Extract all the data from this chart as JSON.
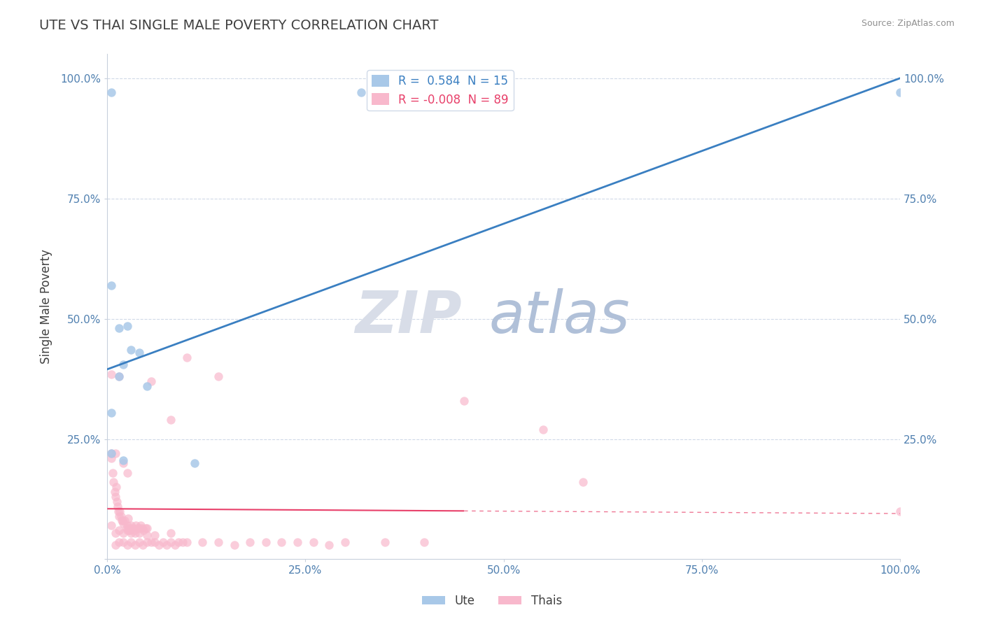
{
  "title": "UTE VS THAI SINGLE MALE POVERTY CORRELATION CHART",
  "source_text": "Source: ZipAtlas.com",
  "ylabel": "Single Male Poverty",
  "legend_entries": [
    {
      "label": "R =  0.584  N = 15",
      "color": "#a8c8e8"
    },
    {
      "label": "R = -0.008  N = 89",
      "color": "#f8b8cc"
    }
  ],
  "ute_scatter": [
    [
      0.5,
      97.0
    ],
    [
      32.0,
      97.0
    ],
    [
      0.5,
      57.0
    ],
    [
      1.5,
      48.0
    ],
    [
      2.5,
      48.5
    ],
    [
      3.0,
      43.5
    ],
    [
      4.0,
      43.0
    ],
    [
      2.0,
      40.5
    ],
    [
      1.5,
      38.0
    ],
    [
      5.0,
      36.0
    ],
    [
      0.5,
      30.5
    ],
    [
      0.5,
      22.0
    ],
    [
      2.0,
      20.5
    ],
    [
      11.0,
      20.0
    ],
    [
      100.0,
      97.0
    ]
  ],
  "thai_scatter": [
    [
      0.5,
      21.0
    ],
    [
      0.7,
      18.0
    ],
    [
      0.8,
      16.0
    ],
    [
      0.9,
      14.0
    ],
    [
      1.0,
      13.0
    ],
    [
      1.1,
      15.0
    ],
    [
      1.2,
      12.0
    ],
    [
      1.3,
      11.0
    ],
    [
      1.4,
      10.0
    ],
    [
      1.5,
      9.0
    ],
    [
      1.6,
      10.0
    ],
    [
      1.7,
      9.0
    ],
    [
      1.8,
      8.0
    ],
    [
      1.9,
      8.0
    ],
    [
      2.0,
      7.5
    ],
    [
      2.2,
      8.0
    ],
    [
      2.4,
      6.5
    ],
    [
      2.5,
      7.0
    ],
    [
      2.6,
      8.5
    ],
    [
      2.7,
      6.0
    ],
    [
      2.8,
      6.5
    ],
    [
      2.9,
      6.0
    ],
    [
      3.0,
      7.0
    ],
    [
      3.2,
      6.5
    ],
    [
      3.4,
      6.0
    ],
    [
      3.6,
      7.0
    ],
    [
      3.8,
      6.5
    ],
    [
      4.0,
      6.5
    ],
    [
      4.2,
      7.0
    ],
    [
      4.4,
      6.5
    ],
    [
      4.6,
      6.0
    ],
    [
      4.8,
      6.5
    ],
    [
      5.0,
      6.5
    ],
    [
      1.0,
      3.0
    ],
    [
      1.5,
      3.5
    ],
    [
      2.0,
      3.5
    ],
    [
      2.5,
      3.0
    ],
    [
      3.0,
      3.5
    ],
    [
      3.5,
      3.0
    ],
    [
      4.0,
      3.5
    ],
    [
      4.5,
      3.0
    ],
    [
      5.0,
      3.5
    ],
    [
      5.5,
      3.5
    ],
    [
      6.0,
      3.5
    ],
    [
      6.5,
      3.0
    ],
    [
      7.0,
      3.5
    ],
    [
      7.5,
      3.0
    ],
    [
      8.0,
      3.5
    ],
    [
      8.5,
      3.0
    ],
    [
      9.0,
      3.5
    ],
    [
      9.5,
      3.5
    ],
    [
      10.0,
      3.5
    ],
    [
      12.0,
      3.5
    ],
    [
      14.0,
      3.5
    ],
    [
      16.0,
      3.0
    ],
    [
      18.0,
      3.5
    ],
    [
      20.0,
      3.5
    ],
    [
      22.0,
      3.5
    ],
    [
      24.0,
      3.5
    ],
    [
      26.0,
      3.5
    ],
    [
      28.0,
      3.0
    ],
    [
      30.0,
      3.5
    ],
    [
      35.0,
      3.5
    ],
    [
      40.0,
      3.5
    ],
    [
      0.5,
      38.5
    ],
    [
      1.5,
      38.0
    ],
    [
      5.5,
      37.0
    ],
    [
      45.0,
      33.0
    ],
    [
      8.0,
      29.0
    ],
    [
      10.0,
      42.0
    ],
    [
      14.0,
      38.0
    ],
    [
      55.0,
      27.0
    ],
    [
      0.5,
      22.0
    ],
    [
      1.0,
      22.0
    ],
    [
      2.0,
      20.0
    ],
    [
      2.5,
      18.0
    ],
    [
      60.0,
      16.0
    ],
    [
      0.5,
      7.0
    ],
    [
      1.0,
      5.5
    ],
    [
      1.5,
      6.0
    ],
    [
      2.0,
      5.5
    ],
    [
      2.5,
      6.0
    ],
    [
      3.0,
      5.5
    ],
    [
      3.5,
      5.5
    ],
    [
      4.0,
      5.5
    ],
    [
      5.0,
      5.0
    ],
    [
      6.0,
      5.0
    ],
    [
      8.0,
      5.5
    ],
    [
      100.0,
      10.0
    ]
  ],
  "ute_line_x": [
    0.0,
    100.0
  ],
  "ute_line_y": [
    39.5,
    100.0
  ],
  "thai_line_x": [
    0.0,
    100.0
  ],
  "thai_line_y": [
    10.5,
    9.5
  ],
  "thai_line_solid_end": 45.0,
  "xlim": [
    0.0,
    100.0
  ],
  "ylim": [
    0.0,
    105.0
  ],
  "xticks": [
    0.0,
    25.0,
    50.0,
    75.0,
    100.0
  ],
  "xticklabels": [
    "0.0%",
    "25.0%",
    "50.0%",
    "75.0%",
    "100.0%"
  ],
  "yticks": [
    0.0,
    25.0,
    50.0,
    75.0,
    100.0
  ],
  "yticklabels": [
    "",
    "25.0%",
    "50.0%",
    "75.0%",
    "100.0%"
  ],
  "ute_color": "#a8c8e8",
  "ute_line_color": "#3a7fc1",
  "thai_color": "#f8b8cc",
  "thai_line_color": "#e8406a",
  "title_color": "#404040",
  "axis_color": "#5080b0",
  "grid_color": "#d0dae8",
  "background_color": "#ffffff",
  "watermark_zip_color": "#d8dde8",
  "watermark_atlas_color": "#b0c0d8",
  "marker_size": 80,
  "bottom_legend": [
    {
      "label": "Ute",
      "color": "#a8c8e8"
    },
    {
      "label": "Thais",
      "color": "#f8b8cc"
    }
  ]
}
